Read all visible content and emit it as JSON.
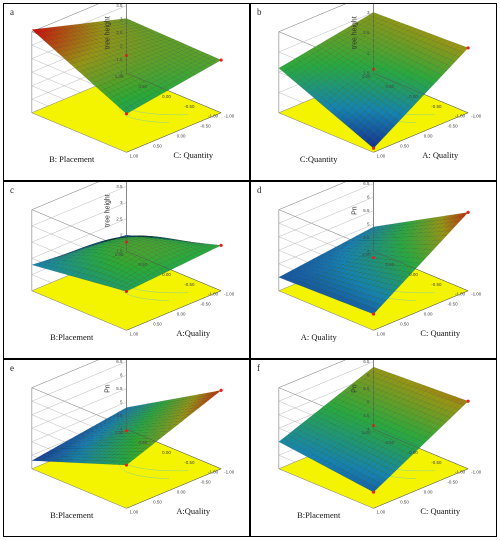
{
  "figure": {
    "panels": [
      {
        "letter": "a",
        "xlabel": "B: Placement",
        "ylabel": "C: Quantity",
        "zlabel": "tree height"
      },
      {
        "letter": "b",
        "xlabel": "C:Quantity",
        "ylabel": "A: Quality",
        "zlabel": "tree height"
      },
      {
        "letter": "c",
        "xlabel": "B:Placement",
        "ylabel": "A:Quality",
        "zlabel": "tree height"
      },
      {
        "letter": "d",
        "xlabel": "A: Quality",
        "ylabel": "C: Quantity",
        "zlabel": "Pn"
      },
      {
        "letter": "e",
        "xlabel": "B:Placement",
        "ylabel": "A:Quality",
        "zlabel": "Pn"
      },
      {
        "letter": "f",
        "xlabel": "B:Placement",
        "ylabel": "C: Quantity",
        "zlabel": "Pn"
      }
    ]
  },
  "chart_data": [
    {
      "type": "surface",
      "panel": "a",
      "x_name": "B: Placement",
      "y_name": "C: Quantity",
      "z_name": "tree height",
      "xlim": [
        -1,
        1
      ],
      "ylim": [
        -1,
        1
      ],
      "zlim": [
        0,
        4
      ],
      "x_ticks": [
        "-1.00",
        "-0.50",
        "0.00",
        "0.50",
        "1.00"
      ],
      "y_ticks": [
        "-1.00",
        "-0.50",
        "0.00",
        "0.50",
        "1.00"
      ],
      "z_ticks": [
        "1",
        "1.5",
        "2",
        "2.5",
        "3",
        "3.5",
        "4"
      ],
      "corners_z": {
        "x-1_y-1": 2.7,
        "x1_y-1": 2.6,
        "x-1_y1": 4.1,
        "x1_y1": 1.9
      }
    },
    {
      "type": "surface",
      "panel": "b",
      "x_name": "C:Quantity",
      "y_name": "A: Quality",
      "z_name": "tree height",
      "xlim": [
        -1,
        1
      ],
      "ylim": [
        -1,
        1
      ],
      "zlim": [
        1.5,
        3.5
      ],
      "x_ticks": [
        "-1.00",
        "-0.50",
        "0.00",
        "0.50",
        "1.00"
      ],
      "y_ticks": [
        "-1.00",
        "-0.50",
        "0.00",
        "0.50",
        "1.00"
      ],
      "z_ticks": [
        "1.5",
        "2",
        "2.5",
        "3",
        "3.5"
      ],
      "corners_z": {
        "x-1_y-1": 3.0,
        "x1_y-1": 3.1,
        "x-1_y1": 2.6,
        "x1_y1": 1.6
      }
    },
    {
      "type": "surface",
      "panel": "c",
      "x_name": "B:Placement",
      "y_name": "A:Quality",
      "z_name": "tree height",
      "xlim": [
        -1,
        1
      ],
      "ylim": [
        -1,
        1
      ],
      "zlim": [
        1.5,
        4
      ],
      "x_ticks": [
        "-1.00",
        "-0.50",
        "0.00",
        "0.50",
        "1.00"
      ],
      "y_ticks": [
        "-1.00",
        "-0.50",
        "0.00",
        "0.50",
        "1.00"
      ],
      "z_ticks": [
        "1.5",
        "2",
        "2.5",
        "3",
        "3.5",
        "4"
      ],
      "corners_z": {
        "x-1_y-1": 2.0,
        "x1_y-1": 2.9,
        "x-1_y1": 2.3,
        "x1_y1": 2.7,
        "center": 3.0
      }
    },
    {
      "type": "surface",
      "panel": "d",
      "x_name": "A: Quality",
      "y_name": "C: Quantity",
      "z_name": "Pn",
      "xlim": [
        -1,
        1
      ],
      "ylim": [
        -1,
        1
      ],
      "zlim": [
        4,
        7
      ],
      "x_ticks": [
        "-1.00",
        "-0.50",
        "0.00",
        "0.50",
        "1.00"
      ],
      "y_ticks": [
        "-1.00",
        "-0.50",
        "0.00",
        "0.50",
        "1.00"
      ],
      "z_ticks": [
        "4",
        "4.5",
        "5",
        "5.5",
        "6",
        "6.5",
        "7"
      ],
      "corners_z": {
        "x-1_y-1": 4.9,
        "x1_y-1": 6.9,
        "x-1_y1": 4.5,
        "x1_y1": 4.6
      }
    },
    {
      "type": "surface",
      "panel": "e",
      "x_name": "B:Placement",
      "y_name": "A:Quality",
      "z_name": "Pn",
      "xlim": [
        -1,
        1
      ],
      "ylim": [
        -1,
        1
      ],
      "zlim": [
        4,
        7
      ],
      "x_ticks": [
        "-1.00",
        "-0.50",
        "0.00",
        "0.50",
        "1.00"
      ],
      "y_ticks": [
        "-1.00",
        "-0.50",
        "0.00",
        "0.50",
        "1.00"
      ],
      "z_ticks": [
        "4",
        "4.5",
        "5",
        "5.5",
        "6",
        "6.5",
        "7"
      ],
      "corners_z": {
        "x-1_y-1": 4.8,
        "x1_y-1": 6.9,
        "x-1_y1": 4.3,
        "x1_y1": 5.6
      }
    },
    {
      "type": "surface",
      "panel": "f",
      "x_name": "B:Placement",
      "y_name": "C: Quantity",
      "z_name": "Pn",
      "xlim": [
        -1,
        1
      ],
      "ylim": [
        -1,
        1
      ],
      "zlim": [
        4,
        7
      ],
      "x_ticks": [
        "-1.00",
        "-0.50",
        "0.00",
        "0.50",
        "1.00"
      ],
      "y_ticks": [
        "-1.00",
        "-0.50",
        "0.00",
        "0.50",
        "1.00"
      ],
      "z_ticks": [
        "4",
        "4.5",
        "5",
        "5.5",
        "6",
        "6.5",
        "7"
      ],
      "corners_z": {
        "x-1_y-1": 6.3,
        "x1_y-1": 6.5,
        "x-1_y1": 5.0,
        "x1_y1": 4.6
      }
    }
  ]
}
